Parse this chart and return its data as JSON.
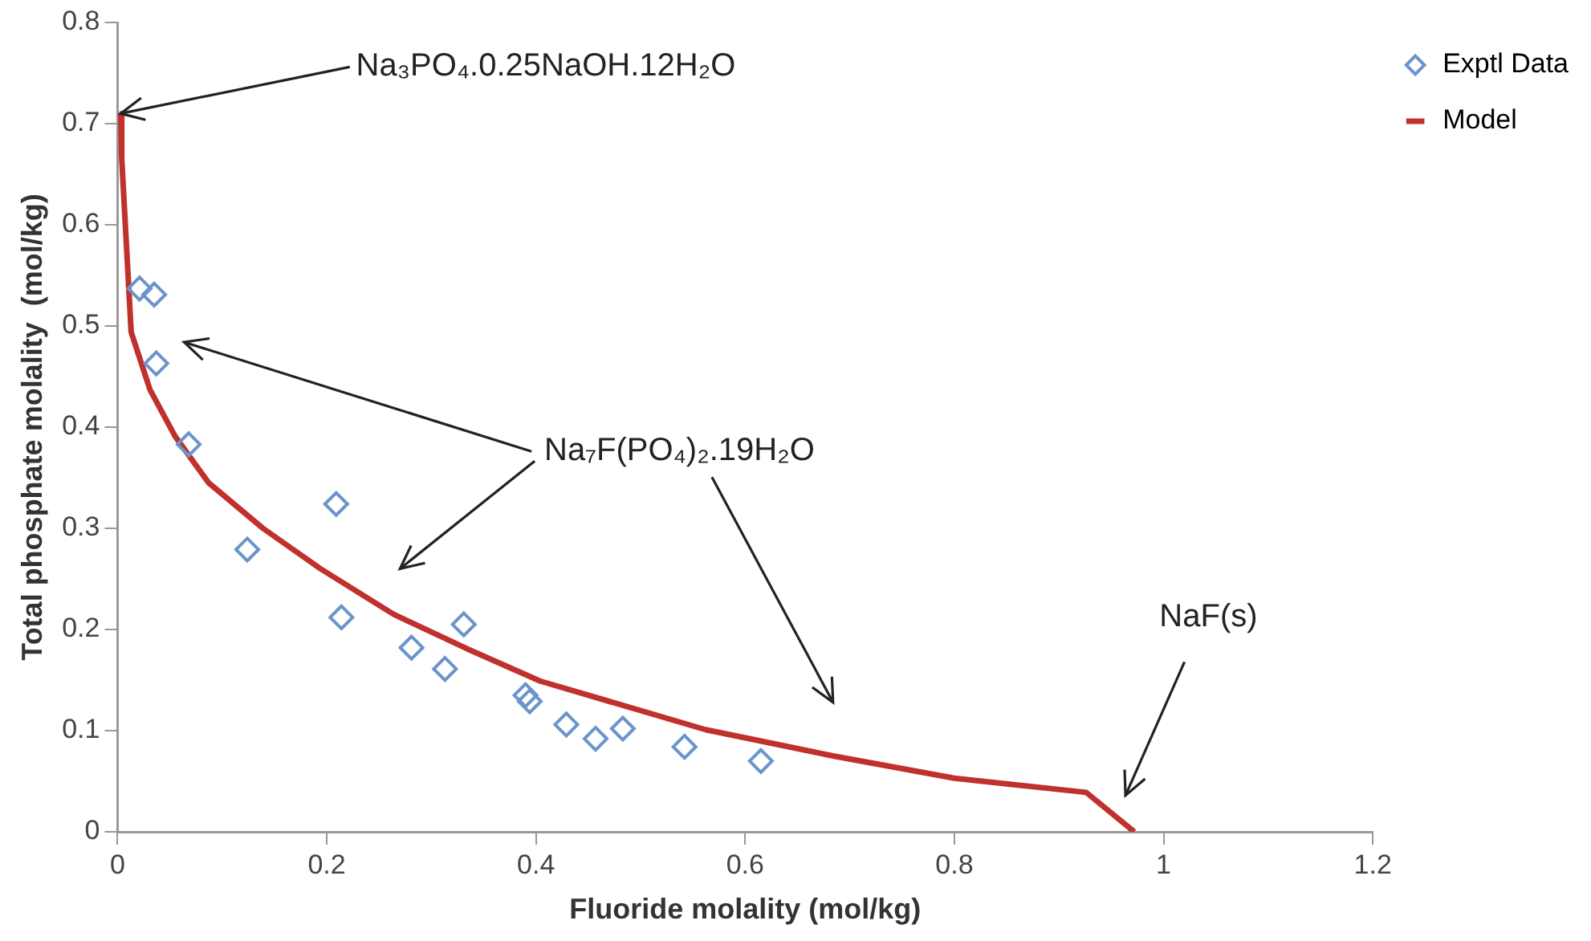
{
  "chart_data": {
    "type": "scatter",
    "xlabel": "Fluoride molality (mol/kg)",
    "ylabel": "Total phosphate molality  (mol/kg)",
    "xlim": [
      0,
      1.2
    ],
    "xticks": [
      0,
      0.2,
      0.4,
      0.6,
      0.8,
      1,
      1.2
    ],
    "ylim": [
      0,
      0.8
    ],
    "yticks": [
      0,
      0.1,
      0.2,
      0.3,
      0.4,
      0.5,
      0.6,
      0.7,
      0.8
    ],
    "legend": "top right",
    "series": [
      {
        "name": "Exptl Data",
        "marker": "diamond",
        "color": "#6a95cc",
        "x": [
          0.021,
          0.035,
          0.037,
          0.068,
          0.124,
          0.209,
          0.214,
          0.281,
          0.313,
          0.331,
          0.39,
          0.394,
          0.429,
          0.457,
          0.483,
          0.542,
          0.615
        ],
        "values": [
          0.537,
          0.531,
          0.463,
          0.383,
          0.279,
          0.324,
          0.212,
          0.182,
          0.161,
          0.205,
          0.135,
          0.129,
          0.106,
          0.092,
          0.102,
          0.084,
          0.07
        ]
      },
      {
        "name": "Model",
        "type": "line",
        "marker": "none",
        "color": "#c0302c",
        "x": [
          0.003,
          0.004,
          0.013,
          0.031,
          0.055,
          0.087,
          0.139,
          0.194,
          0.264,
          0.334,
          0.404,
          0.562,
          0.684,
          0.8,
          0.926,
          0.972
        ],
        "values": [
          0.71,
          0.665,
          0.494,
          0.437,
          0.391,
          0.345,
          0.3,
          0.26,
          0.215,
          0.181,
          0.149,
          0.101,
          0.075,
          0.053,
          0.039,
          0
        ]
      }
    ],
    "annotations": [
      {
        "text": "Na₃PO₄.0.25NaOH.12H₂O",
        "x": 0.003,
        "y": 0.71
      },
      "Na₇F(PO₄)₂.19H₂O",
      "NaF(s)"
    ]
  }
}
